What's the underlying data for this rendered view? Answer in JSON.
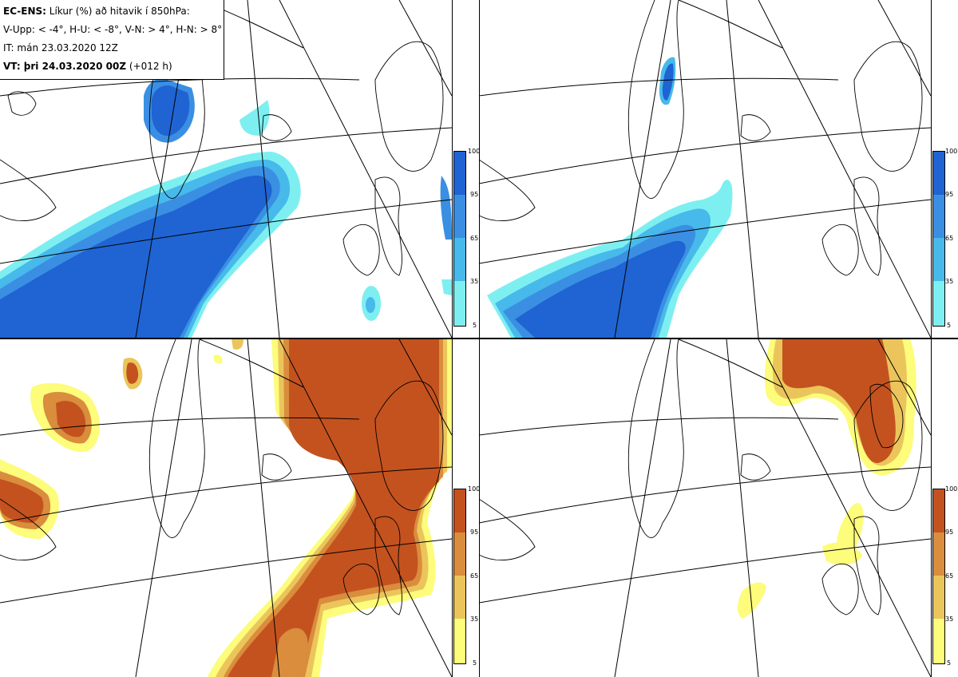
{
  "header": {
    "title_bold": "EC-ENS:",
    "title_rest": " Líkur (%) að hitavik í 850hPa:",
    "legend": "V-Upp: < -4°, H-U: < -8°, V-N: > 4°, H-N: > 8°",
    "it": "IT: mán 23.03.2020 12Z",
    "vt_bold": "VT: þri 24.03.2020 00Z",
    "vt_rest": " (+012 h)"
  },
  "colorbars": {
    "ticks": [
      "100",
      "95",
      "65",
      "35",
      "5"
    ],
    "cold_colors": [
      "#1f64d2",
      "#3a8fe3",
      "#47b9ea",
      "#7eeff1"
    ],
    "warm_colors": [
      "#c4521f",
      "#d98d3d",
      "#ebc55b",
      "#fdfc7b"
    ]
  },
  "panels": [
    {
      "name": "V-Upp",
      "field": "cold"
    },
    {
      "name": "H-U",
      "field": "cold"
    },
    {
      "name": "V-N",
      "field": "warm"
    },
    {
      "name": "H-N",
      "field": "warm"
    }
  ]
}
